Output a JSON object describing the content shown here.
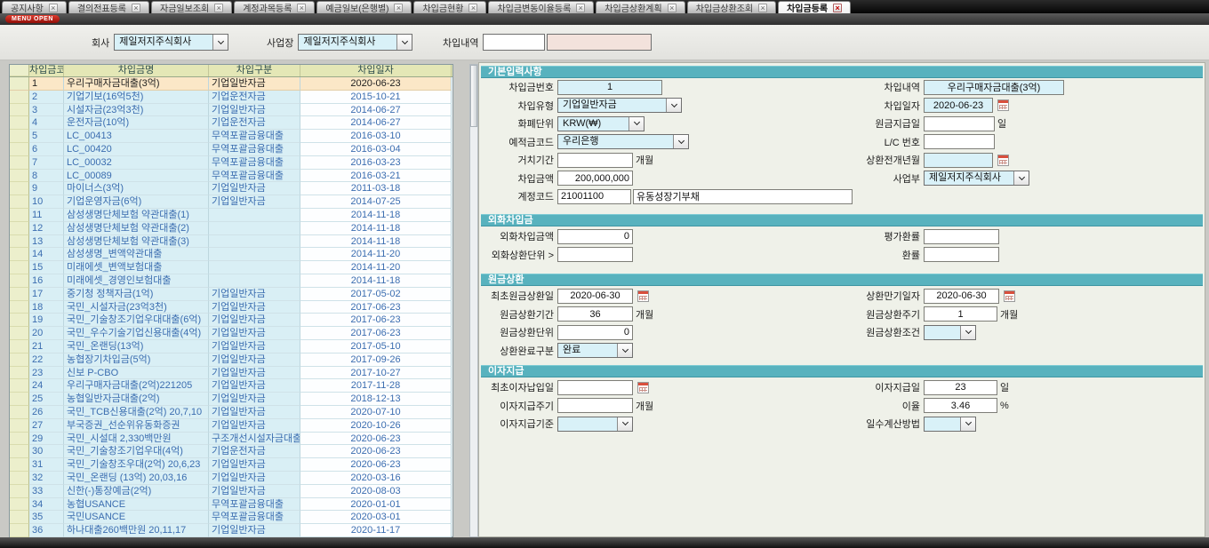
{
  "menu_open_label": "MENU OPEN",
  "icons": {
    "close": "×"
  },
  "tabs": [
    {
      "label": "공지사항",
      "active": false
    },
    {
      "label": "결의전표등록",
      "active": false
    },
    {
      "label": "자금일보조회",
      "active": false
    },
    {
      "label": "계정과목등록",
      "active": false
    },
    {
      "label": "예금일보(은행별)",
      "active": false
    },
    {
      "label": "차입금현황",
      "active": false
    },
    {
      "label": "차입금변동이율등록",
      "active": false
    },
    {
      "label": "차입금상환계획",
      "active": false
    },
    {
      "label": "차입금상환조회",
      "active": false
    },
    {
      "label": "차입금등록",
      "active": true
    }
  ],
  "filter": {
    "company_label": "회사",
    "company_value": "제일저지주식회사",
    "site_label": "사업장",
    "site_value": "제일저지주식회사",
    "loan_desc_label": "차입내역",
    "loan_desc_code": "",
    "loan_desc_name": ""
  },
  "table": {
    "columns": [
      "차입금코드",
      "차입금명",
      "차입구분",
      "차입일자"
    ],
    "rows": [
      {
        "code": "1",
        "name": "우리구매자금대출(3억)",
        "type": "기업일반자금",
        "date": "2020-06-23",
        "selected": true
      },
      {
        "code": "2",
        "name": "기업기보(16억5천)",
        "type": "기업운전자금",
        "date": "2015-10-21",
        "selected": false
      },
      {
        "code": "3",
        "name": "시설자금(23억3천)",
        "type": "기업일반자금",
        "date": "2014-06-27",
        "selected": false
      },
      {
        "code": "4",
        "name": "운전자금(10억)",
        "type": "기업운전자금",
        "date": "2014-06-27",
        "selected": false
      },
      {
        "code": "5",
        "name": "LC_00413",
        "type": "무역포괄금융대출",
        "date": "2016-03-10",
        "selected": false
      },
      {
        "code": "6",
        "name": "LC_00420",
        "type": "무역포괄금융대출",
        "date": "2016-03-04",
        "selected": false
      },
      {
        "code": "7",
        "name": "LC_00032",
        "type": "무역포괄금융대출",
        "date": "2016-03-23",
        "selected": false
      },
      {
        "code": "8",
        "name": "LC_00089",
        "type": "무역포괄금융대출",
        "date": "2016-03-21",
        "selected": false
      },
      {
        "code": "9",
        "name": "마이너스(3억)",
        "type": "기업일반자금",
        "date": "2011-03-18",
        "selected": false
      },
      {
        "code": "10",
        "name": "기업운영자금(6억)",
        "type": "기업일반자금",
        "date": "2014-07-25",
        "selected": false
      },
      {
        "code": "11",
        "name": "삼성생명단체보험 약관대출(1)",
        "type": "",
        "date": "2014-11-18",
        "selected": false
      },
      {
        "code": "12",
        "name": "삼성생명단체보험 약관대출(2)",
        "type": "",
        "date": "2014-11-18",
        "selected": false
      },
      {
        "code": "13",
        "name": "삼성생명단체보험 약관대출(3)",
        "type": "",
        "date": "2014-11-18",
        "selected": false
      },
      {
        "code": "14",
        "name": "삼성생명_변액약관대출",
        "type": "",
        "date": "2014-11-20",
        "selected": false
      },
      {
        "code": "15",
        "name": "미래에셋_변액보험대출",
        "type": "",
        "date": "2014-11-20",
        "selected": false
      },
      {
        "code": "16",
        "name": "미래에셋_경영인보험대출",
        "type": "",
        "date": "2014-11-18",
        "selected": false
      },
      {
        "code": "17",
        "name": "중기청 정책자금(1억)",
        "type": "기업일반자금",
        "date": "2017-05-02",
        "selected": false
      },
      {
        "code": "18",
        "name": "국민_시설자금(23억3천)",
        "type": "기업일반자금",
        "date": "2017-06-23",
        "selected": false
      },
      {
        "code": "19",
        "name": "국민_기술창조기업우대대출(6억)",
        "type": "기업일반자금",
        "date": "2017-06-23",
        "selected": false
      },
      {
        "code": "20",
        "name": "국민_우수기술기업신용대출(4억)",
        "type": "기업일반자금",
        "date": "2017-06-23",
        "selected": false
      },
      {
        "code": "21",
        "name": "국민_온랜딩(13억)",
        "type": "기업일반자금",
        "date": "2017-05-10",
        "selected": false
      },
      {
        "code": "22",
        "name": "농협장기차입금(5억)",
        "type": "기업일반자금",
        "date": "2017-09-26",
        "selected": false
      },
      {
        "code": "23",
        "name": "신보 P-CBO",
        "type": "기업일반자금",
        "date": "2017-10-27",
        "selected": false
      },
      {
        "code": "24",
        "name": "우리구매자금대출(2억)221205",
        "type": "기업일반자금",
        "date": "2017-11-28",
        "selected": false
      },
      {
        "code": "25",
        "name": "농협일반자금대출(2억)",
        "type": "기업일반자금",
        "date": "2018-12-13",
        "selected": false
      },
      {
        "code": "26",
        "name": "국민_TCB신용대출(2억) 20,7,10",
        "type": "기업일반자금",
        "date": "2020-07-10",
        "selected": false
      },
      {
        "code": "27",
        "name": "부국증권_선순위유동화증권",
        "type": "기업일반자금",
        "date": "2020-10-26",
        "selected": false
      },
      {
        "code": "29",
        "name": "국민_시설대 2,330백만원",
        "type": "구조개선시설자금대출",
        "date": "2020-06-23",
        "selected": false
      },
      {
        "code": "30",
        "name": "국민_기술창조기업우대(4억)",
        "type": "기업운전자금",
        "date": "2020-06-23",
        "selected": false
      },
      {
        "code": "31",
        "name": "국민_기술창조우대(2억) 20,6,23",
        "type": "기업일반자금",
        "date": "2020-06-23",
        "selected": false
      },
      {
        "code": "32",
        "name": "국민_온랜딩 (13억) 20,03,16",
        "type": "기업일반자금",
        "date": "2020-03-16",
        "selected": false
      },
      {
        "code": "33",
        "name": "신한(-)통장예금(2억)",
        "type": "기업일반자금",
        "date": "2020-08-03",
        "selected": false
      },
      {
        "code": "34",
        "name": "농협USANCE",
        "type": "무역포괄금융대출",
        "date": "2020-01-01",
        "selected": false
      },
      {
        "code": "35",
        "name": "국민USANCE",
        "type": "무역포괄금융대출",
        "date": "2020-03-01",
        "selected": false
      },
      {
        "code": "36",
        "name": "하나대출260백만원 20,11,17",
        "type": "기업일반자금",
        "date": "2020-11-17",
        "selected": false
      }
    ]
  },
  "form": {
    "basic_title": "기본입력사항",
    "loan_no_label": "차입금번호",
    "loan_no_value": "1",
    "loan_type_label": "차입유형",
    "loan_type_value": "기업일반자금",
    "currency_label": "화폐단위",
    "currency_value": "KRW(₩)",
    "deposit_code_label": "예적금코드",
    "deposit_code_value": "우리은행",
    "grace_period_label": "거치기간",
    "grace_period_value": "",
    "loan_amount_label": "차입금액",
    "loan_amount_value": "200,000,000",
    "account_code_label": "계정코드",
    "account_code_value": "21001100",
    "account_name_value": "유동성장기부채",
    "loan_desc_label": "차입내역",
    "loan_desc_value": "우리구매자금대출(3억)",
    "loan_date_label": "차입일자",
    "loan_date_value": "2020-06-23",
    "principal_pay_day_label": "원금지급일",
    "principal_pay_day_value": "",
    "lc_no_label": "L/C 번호",
    "lc_no_value": "",
    "repay_open_month_label": "상환전개년월",
    "repay_open_month_value": "",
    "division_label": "사업부",
    "division_value": "제일저지주식회사",
    "foreign_title": "외화차입금",
    "foreign_amount_label": "외화차입금액",
    "foreign_amount_value": "0",
    "eval_rate_label": "평가환률",
    "eval_rate_value": "",
    "foreign_repay_unit_label": "외화상환단위 >",
    "foreign_repay_unit_value": "",
    "exchange_rate_label": "환률",
    "exchange_rate_value": "",
    "principal_title": "원금상환",
    "first_repay_date_label": "최초원금상환일",
    "first_repay_date_value": "2020-06-30",
    "maturity_date_label": "상환만기일자",
    "maturity_date_value": "2020-06-30",
    "repay_period_label": "원금상환기간",
    "repay_period_value": "36",
    "repay_cycle_label": "원금상환주기",
    "repay_cycle_value": "1",
    "repay_unit_label": "원금상환단위",
    "repay_unit_value": "0",
    "repay_condition_label": "원금상환조건",
    "repay_condition_value": "",
    "repay_complete_label": "상환완료구분",
    "repay_complete_value": "완료",
    "interest_title": "이자지급",
    "first_interest_date_label": "최초이자납입일",
    "first_interest_date_value": "",
    "interest_pay_day_label": "이자지급일",
    "interest_pay_day_value": "23",
    "interest_cycle_label": "이자지급주기",
    "interest_cycle_value": "",
    "interest_rate_label": "이율",
    "interest_rate_value": "3.46",
    "interest_basis_label": "이자지급기준",
    "interest_basis_value": "",
    "day_count_label": "일수계산방법",
    "day_count_value": "",
    "month_unit": "개월",
    "day_unit": "일",
    "percent_unit": "%"
  }
}
